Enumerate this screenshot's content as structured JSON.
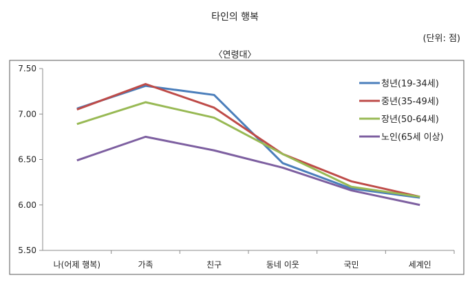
{
  "chart_data": {
    "type": "line",
    "title": "타인의 행복",
    "unit": "(단위: 점)",
    "subtitle": "〈연령대〉",
    "categories": [
      "나(어제 행복)",
      "가족",
      "친구",
      "동네 이웃",
      "국민",
      "세계인"
    ],
    "ylim": [
      5.5,
      7.5
    ],
    "yticks": [
      "5.50",
      "6.00",
      "6.50",
      "7.00",
      "7.50"
    ],
    "grid": false,
    "legend": "right",
    "series": [
      {
        "name": "청년(19-34세)",
        "color": "#4a7ebb",
        "values": [
          7.06,
          7.31,
          7.21,
          6.46,
          6.18,
          6.08
        ]
      },
      {
        "name": "중년(35-49세)",
        "color": "#be4b48",
        "values": [
          7.05,
          7.33,
          7.07,
          6.56,
          6.26,
          6.09
        ]
      },
      {
        "name": "장년(50-64세)",
        "color": "#98b954",
        "values": [
          6.89,
          7.13,
          6.96,
          6.56,
          6.2,
          6.09
        ]
      },
      {
        "name": "노인(65세 이상)",
        "color": "#7d5fa0",
        "values": [
          6.49,
          6.75,
          6.6,
          6.41,
          6.16,
          6.0
        ]
      }
    ]
  }
}
